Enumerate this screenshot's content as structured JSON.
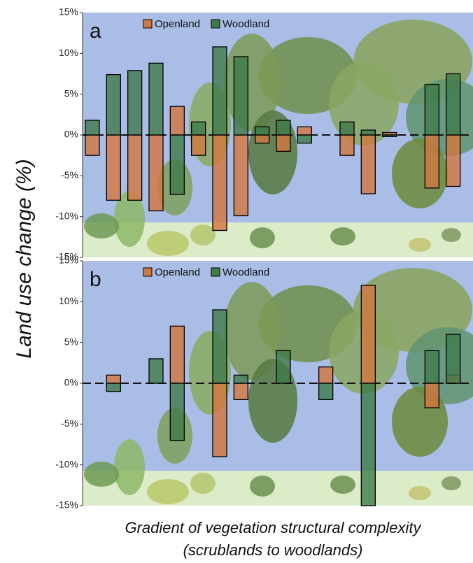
{
  "chart_data": [
    {
      "type": "bar",
      "title": "a",
      "categories": [
        null,
        null,
        null,
        null,
        null,
        null,
        null,
        null,
        null,
        null,
        null,
        null,
        null,
        null,
        null,
        null,
        null,
        null
      ],
      "series": [
        {
          "name": "Openland",
          "color": "#d2773f",
          "values": [
            -2.5,
            -8,
            -8,
            -9.3,
            3.5,
            -2.5,
            -11.7,
            -9.9,
            -1,
            -2,
            1,
            null,
            -2.5,
            -7.2,
            0.3,
            null,
            -6.5,
            -6.3
          ]
        },
        {
          "name": "Woodland",
          "color": "#3f7a4a",
          "values": [
            1.8,
            7.4,
            7.9,
            8.8,
            -7.3,
            1.6,
            10.8,
            9.6,
            1,
            1.8,
            -1,
            null,
            1.6,
            0.6,
            -0.2,
            null,
            6.2,
            7.5
          ]
        }
      ],
      "ylim": [
        -15,
        15
      ],
      "yticks": [
        {
          "value": -15,
          "label": "-15%"
        },
        {
          "value": -10,
          "label": "-10%"
        },
        {
          "value": -5,
          "label": "-5%"
        },
        {
          "value": 0,
          "label": "0%"
        },
        {
          "value": 5,
          "label": "5%"
        },
        {
          "value": 10,
          "label": "10%"
        },
        {
          "value": 15,
          "label": "15%"
        }
      ]
    },
    {
      "type": "bar",
      "title": "b",
      "categories": [
        null,
        null,
        null,
        null,
        null,
        null,
        null,
        null,
        null,
        null,
        null,
        null,
        null,
        null,
        null,
        null,
        null,
        null
      ],
      "series": [
        {
          "name": "Openland",
          "color": "#d2773f",
          "values": [
            null,
            1,
            null,
            null,
            7,
            null,
            -9,
            -2,
            null,
            null,
            null,
            2,
            null,
            12,
            null,
            null,
            -3,
            1
          ]
        },
        {
          "name": "Woodland",
          "color": "#3f7a4a",
          "values": [
            null,
            -1,
            null,
            3,
            -7,
            null,
            9,
            1,
            null,
            4,
            null,
            -2,
            null,
            -15,
            null,
            null,
            4,
            6
          ]
        }
      ],
      "ylim": [
        -15,
        15
      ],
      "yticks": [
        {
          "value": -15,
          "label": "-15%"
        },
        {
          "value": -10,
          "label": "-10%"
        },
        {
          "value": -5,
          "label": "-5%"
        },
        {
          "value": 0,
          "label": "0%"
        },
        {
          "value": 5,
          "label": "5%"
        },
        {
          "value": 10,
          "label": "10%"
        },
        {
          "value": 15,
          "label": "15%"
        }
      ]
    }
  ],
  "axis_labels": {
    "y": "Land use change (%)",
    "x": [
      "Gradient of vegetation structural complexity",
      "(scrublands to woodlands)"
    ]
  }
}
